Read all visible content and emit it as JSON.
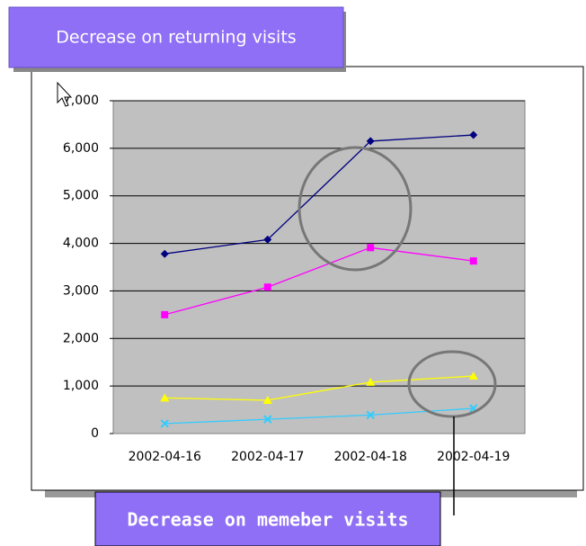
{
  "chart_data": {
    "type": "line",
    "annotations": [
      "Decrease on returning visits",
      "Decrease on memeber visits"
    ],
    "categories": [
      "2002-04-16",
      "2002-04-17",
      "2002-04-18",
      "2002-04-19"
    ],
    "series": [
      {
        "color": "#000080",
        "marker": "diamond",
        "values": [
          3780,
          4080,
          6150,
          6280
        ]
      },
      {
        "color": "#ff00ff",
        "marker": "square",
        "values": [
          2500,
          3080,
          3910,
          3630
        ]
      },
      {
        "color": "#ffff00",
        "marker": "triangle",
        "values": [
          750,
          700,
          1080,
          1210
        ]
      },
      {
        "color": "#33ccff",
        "marker": "cross",
        "values": [
          210,
          300,
          390,
          530
        ]
      }
    ],
    "ylim": [
      0,
      7000
    ],
    "yticks": [
      0,
      {
        "value": 1000,
        "label": "1,000"
      },
      {
        "value": 2000,
        "label": "2,000"
      },
      {
        "value": 3000,
        "label": "3,000"
      },
      {
        "value": 4000,
        "label": "4,000"
      },
      {
        "value": 5000,
        "label": "5,000"
      },
      {
        "value": 6000,
        "label": "6,000"
      },
      {
        "value": 7000,
        "label": "7,000"
      }
    ],
    "grid": true
  }
}
